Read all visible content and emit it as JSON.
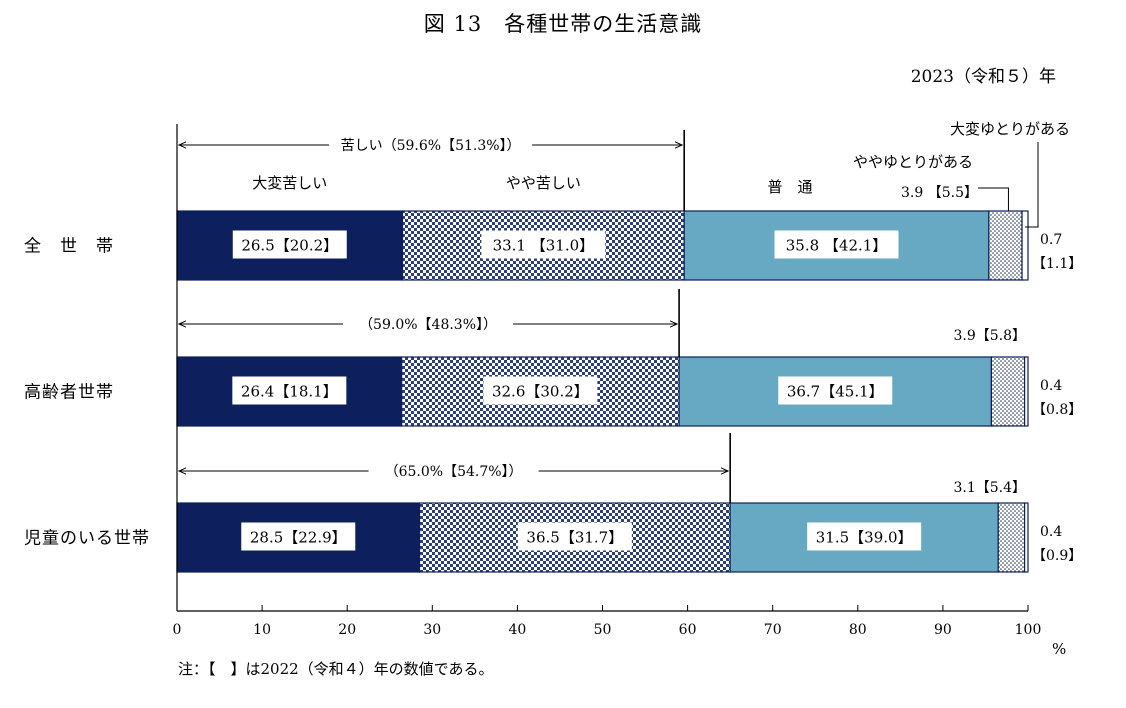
{
  "title": "図 13　各種世帯の生活意識",
  "year_label": "2023（令和５）年",
  "note": "注：【　】は2022（令和４）年の数値である。",
  "unit": "%",
  "chart_data": {
    "type": "bar",
    "orientation": "horizontal",
    "stacked": true,
    "xlim": [
      0,
      100
    ],
    "xticks": [
      0,
      10,
      20,
      30,
      40,
      50,
      60,
      70,
      80,
      90,
      100
    ],
    "categories": [
      "全　世　帯",
      "高齢者世帯",
      "児童のいる世帯"
    ],
    "series": [
      {
        "name": "大変苦しい",
        "values": [
          26.5,
          26.4,
          28.5
        ],
        "prev": [
          20.2,
          18.1,
          22.9
        ],
        "color": "#0d1f5c"
      },
      {
        "name": "やや苦しい",
        "values": [
          33.1,
          32.6,
          36.5
        ],
        "prev": [
          31.0,
          30.2,
          31.7
        ],
        "color": "#5a6d9c"
      },
      {
        "name": "普　通",
        "values": [
          35.8,
          36.7,
          31.5
        ],
        "prev": [
          42.1,
          45.1,
          39.0
        ],
        "color": "#67a9c2"
      },
      {
        "name": "ややゆとりがある",
        "values": [
          3.9,
          3.9,
          3.1
        ],
        "prev": [
          5.5,
          5.8,
          5.4
        ],
        "color": "#dfe6ee"
      },
      {
        "name": "大変ゆとりがある",
        "values": [
          0.7,
          0.4,
          0.4
        ],
        "prev": [
          1.1,
          0.8,
          0.9
        ],
        "color": "#ffffff"
      }
    ],
    "segment_labels": [
      [
        "26.5【20.2】",
        "33.1 【31.0】",
        "35.8 【42.1】"
      ],
      [
        "26.4【18.1】",
        "32.6【30.2】",
        "36.7【45.1】"
      ],
      [
        "28.5【22.9】",
        "36.5【31.7】",
        "31.5【39.0】"
      ]
    ],
    "small_labels": [
      {
        "upper": "3.9 【5.5】",
        "lower1": "0.7",
        "lower2": "【1.1】"
      },
      {
        "upper": "3.9【5.8】",
        "lower1": "0.4",
        "lower2": "【0.8】"
      },
      {
        "upper": "3.1【5.4】",
        "lower1": "0.4",
        "lower2": "【0.9】"
      }
    ],
    "bracket_labels": [
      "苦しい（59.6%【51.3%】）",
      "（59.0%【48.3%】）",
      "（65.0%【54.7%】）"
    ],
    "bracket_values": [
      59.6,
      59.0,
      65.0
    ]
  }
}
